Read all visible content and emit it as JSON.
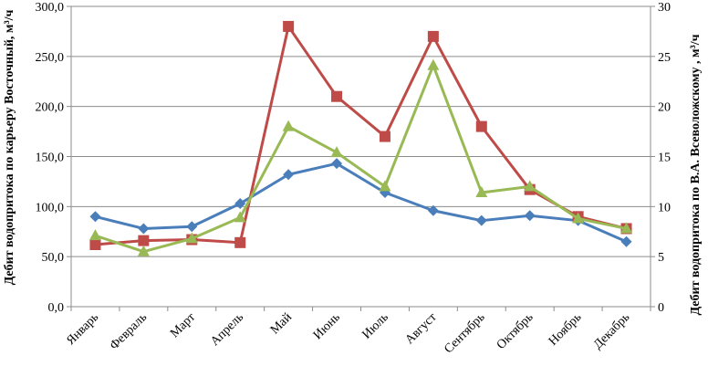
{
  "chart_data": {
    "type": "line",
    "categories": [
      "Январь",
      "Февраль",
      "Март",
      "Апрель",
      "Май",
      "Июнь",
      "Июль",
      "Август",
      "Сентябрь",
      "Октябрь",
      "Ноябрь",
      "Декабрь"
    ],
    "ylabel_left": "Дебит водопритока по карьеру Восточный, м³/ч",
    "ylabel_right": "Дебит водопритока по В.А. Всеволожскому , м³/ч",
    "ylim_left": [
      0,
      300
    ],
    "ylim_right": [
      0,
      30
    ],
    "yticks_left": [
      "0,0",
      "50,0",
      "100,0",
      "150,0",
      "200,0",
      "250,0",
      "300,0"
    ],
    "yticks_right": [
      "0",
      "5",
      "10",
      "15",
      "20",
      "25",
      "30"
    ],
    "grid": "horizontal",
    "series": [
      {
        "marker": "diamond",
        "color": "#4a7ebb",
        "axis": "left",
        "values": [
          90,
          78,
          80,
          103,
          132,
          143,
          114,
          96,
          86,
          91,
          86,
          65
        ]
      },
      {
        "marker": "square",
        "color": "#be4b48",
        "axis": "right",
        "values": [
          6.2,
          6.6,
          6.7,
          6.4,
          28,
          21,
          17,
          27,
          18,
          11.7,
          9,
          7.8
        ]
      },
      {
        "marker": "triangle",
        "color": "#98b954",
        "axis": "left",
        "values": [
          71,
          55,
          68,
          89,
          180,
          154,
          120,
          241,
          114,
          120,
          88,
          78
        ]
      }
    ]
  }
}
